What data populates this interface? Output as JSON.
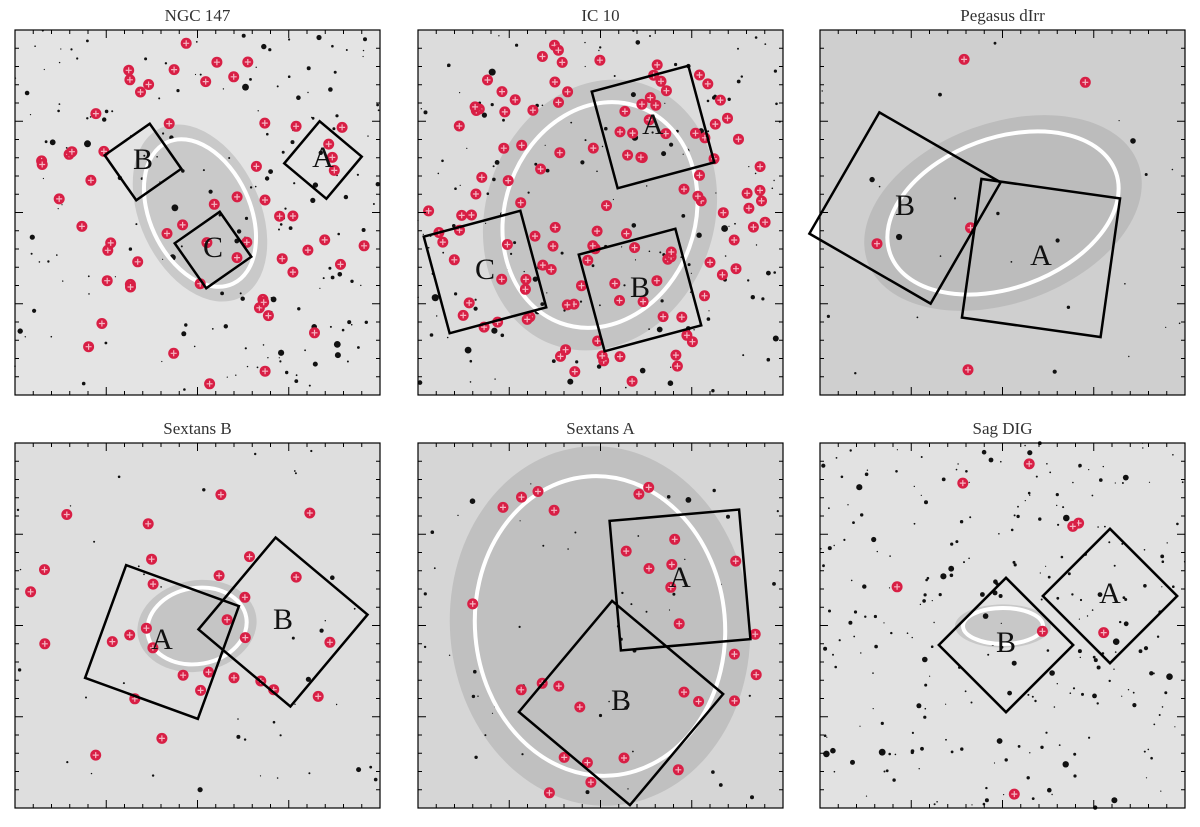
{
  "panels": [
    {
      "title": "NGC 147",
      "fields": [
        "A",
        "B",
        "C"
      ]
    },
    {
      "title": "IC 10",
      "fields": [
        "A",
        "B",
        "C"
      ]
    },
    {
      "title": "Pegasus dIrr",
      "fields": [
        "A",
        "B"
      ]
    },
    {
      "title": "Sextans B",
      "fields": [
        "A",
        "B"
      ]
    },
    {
      "title": "Sextans A",
      "fields": [
        "A",
        "B"
      ]
    },
    {
      "title": "Sag DIG",
      "fields": [
        "A",
        "B"
      ]
    }
  ]
}
